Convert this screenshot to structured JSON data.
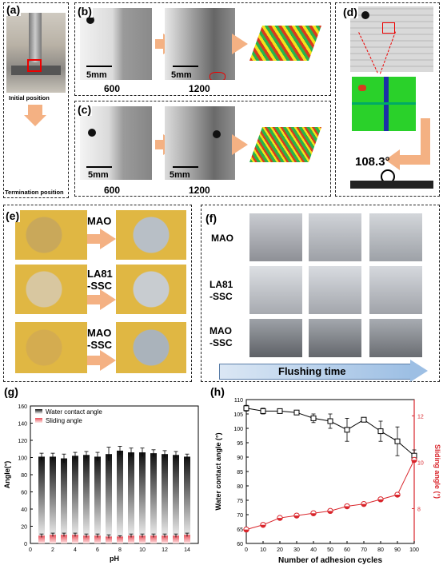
{
  "panels": {
    "a": {
      "label": "(a)",
      "caption_top": "Initial position",
      "caption_bottom": "Termination position"
    },
    "b": {
      "label": "(b)",
      "scale1": "5mm",
      "scale2": "5mm",
      "val1": "600",
      "val2": "1200"
    },
    "c": {
      "label": "(c)",
      "scale1": "5mm",
      "scale2": "5mm",
      "val1": "600",
      "val2": "1200"
    },
    "d": {
      "label": "(d)",
      "angle": "108.3°"
    },
    "e": {
      "label": "(e)",
      "rows": [
        "MAO",
        "LA81\n-SSC",
        "MAO\n-SSC"
      ]
    },
    "f": {
      "label": "(f)",
      "rows": [
        "MAO",
        "LA81\n-SSC",
        "MAO\n-SSC"
      ],
      "flush": "Flushing time"
    },
    "g": {
      "label": "(g)"
    },
    "h": {
      "label": "(h)"
    }
  },
  "colors": {
    "arrow": "#f4b183",
    "panel_border": "#222222",
    "h_right_axis": "#d9262c",
    "flush_arrow": "#bdd7ee"
  },
  "chart_data": [
    {
      "type": "bar",
      "xlabel": "pH",
      "ylabel": "Angle(°)",
      "ylim": [
        0,
        160
      ],
      "yticks": [
        0,
        20,
        40,
        60,
        80,
        100,
        120,
        140,
        160
      ],
      "xticks": [
        0,
        2,
        4,
        6,
        8,
        10,
        12,
        14
      ],
      "x": [
        1,
        2,
        3,
        4,
        5,
        6,
        7,
        8,
        9,
        10,
        11,
        12,
        13,
        14
      ],
      "series": [
        {
          "name": "Water contact angle",
          "values": [
            101,
            101,
            99,
            102,
            103,
            101,
            104,
            108,
            106,
            106,
            105,
            104,
            103,
            101
          ],
          "errors": [
            4,
            4,
            5,
            4,
            4,
            5,
            8,
            5,
            5,
            5,
            4,
            4,
            4,
            3
          ]
        },
        {
          "name": "Sliding angle",
          "values": [
            9,
            10,
            10,
            10,
            9,
            9,
            8,
            8,
            9,
            9,
            9,
            9,
            9,
            10
          ],
          "errors": [
            2,
            2,
            2,
            2,
            2,
            2,
            2,
            1,
            2,
            2,
            2,
            2,
            2,
            2
          ]
        }
      ],
      "legend": "top-left"
    },
    {
      "type": "line",
      "xlabel": "Number of adhesion cycles",
      "ylabel": "Water contact angle (°)",
      "ylabel_right": "Sliding angle (°)",
      "xlim": [
        0,
        100
      ],
      "xticks": [
        0,
        10,
        20,
        30,
        40,
        50,
        60,
        70,
        80,
        90,
        100
      ],
      "ylim": [
        60,
        110
      ],
      "yticks": [
        60,
        65,
        70,
        75,
        80,
        85,
        90,
        95,
        100,
        105,
        110
      ],
      "ylim_right": [
        6.5,
        12.7
      ],
      "yticks_right": [
        8,
        10,
        12
      ],
      "x": [
        0,
        10,
        20,
        30,
        40,
        50,
        60,
        70,
        80,
        90,
        100
      ],
      "series": [
        {
          "name": "Water contact angle",
          "axis": "left",
          "values": [
            107,
            106,
            106,
            105.5,
            103.5,
            102.5,
            99.5,
            103,
            99,
            95.5,
            90.5
          ],
          "errors": [
            1,
            1,
            0.5,
            0.5,
            1.5,
            2.5,
            4,
            0.5,
            3.5,
            5,
            2
          ]
        },
        {
          "name": "Sliding angle",
          "axis": "right",
          "values": [
            7.1,
            7.3,
            7.6,
            7.7,
            7.8,
            7.9,
            8.1,
            8.2,
            8.4,
            8.6,
            10.1
          ]
        }
      ]
    }
  ]
}
